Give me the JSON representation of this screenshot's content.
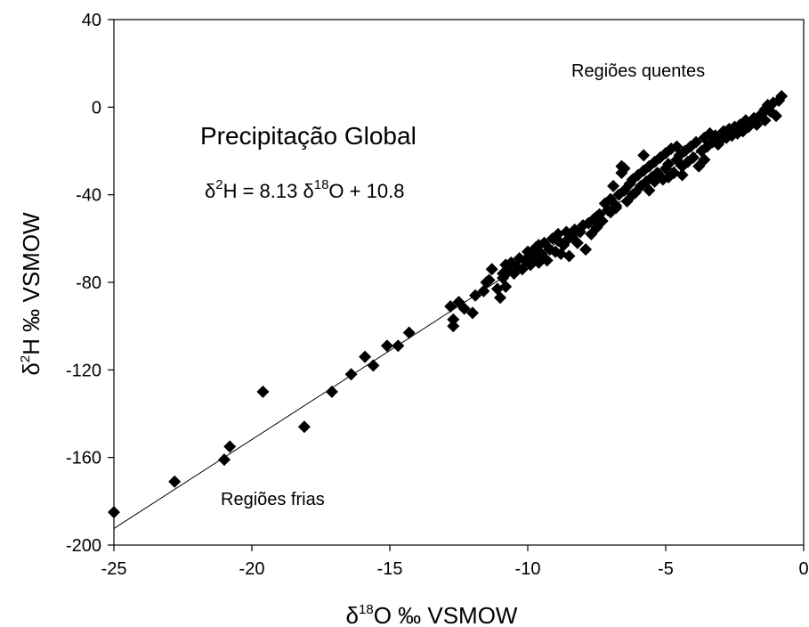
{
  "chart_data": {
    "type": "scatter",
    "title": "Precipitação Global",
    "equation": {
      "delta": "δ",
      "h_iso": "2",
      "h_rest": "H = 8.13 ",
      "o_iso": "18",
      "o_rest": "O + 10.8"
    },
    "xlabel": {
      "delta": "δ",
      "iso": "18",
      "rest": "O ‰ VSMOW"
    },
    "ylabel": {
      "delta": "δ",
      "iso": "2",
      "rest": "H ‰ VSMOW"
    },
    "xlim": [
      -25,
      0
    ],
    "ylim": [
      -200,
      40
    ],
    "xticks": [
      -25,
      -20,
      -15,
      -10,
      -5,
      0
    ],
    "yticks": [
      -200,
      -160,
      -120,
      -80,
      -40,
      0,
      40
    ],
    "annotations": {
      "warm": "Regiões quentes",
      "cold": "Regiões frias"
    },
    "fit_line": {
      "slope": 8.13,
      "intercept": 10.8,
      "x_range": [
        -25,
        -0.8
      ]
    },
    "marker": "diamond",
    "marker_color": "#000000",
    "series": [
      {
        "points": [
          [
            -25.0,
            -185
          ],
          [
            -22.8,
            -171
          ],
          [
            -21.0,
            -161
          ],
          [
            -20.8,
            -155
          ],
          [
            -19.6,
            -130
          ],
          [
            -18.1,
            -146
          ],
          [
            -17.1,
            -130
          ],
          [
            -16.4,
            -122
          ],
          [
            -15.9,
            -114
          ],
          [
            -15.6,
            -118
          ],
          [
            -15.1,
            -109
          ],
          [
            -14.7,
            -109
          ],
          [
            -14.3,
            -103
          ],
          [
            -12.8,
            -91
          ],
          [
            -12.7,
            -97
          ],
          [
            -12.7,
            -100
          ],
          [
            -12.5,
            -89
          ],
          [
            -12.3,
            -92
          ],
          [
            -12.0,
            -94
          ],
          [
            -11.9,
            -86
          ],
          [
            -11.6,
            -84
          ],
          [
            -11.4,
            -79
          ],
          [
            -11.3,
            -74
          ],
          [
            -11.1,
            -83
          ],
          [
            -11.0,
            -87
          ],
          [
            -10.9,
            -78
          ],
          [
            -10.8,
            -82
          ],
          [
            -10.7,
            -75
          ],
          [
            -10.6,
            -71
          ],
          [
            -10.5,
            -76
          ],
          [
            -10.4,
            -73
          ],
          [
            -10.3,
            -69
          ],
          [
            -10.2,
            -74
          ],
          [
            -10.1,
            -70
          ],
          [
            -10.0,
            -66
          ],
          [
            -9.9,
            -72
          ],
          [
            -9.8,
            -68
          ],
          [
            -9.7,
            -64
          ],
          [
            -9.6,
            -71
          ],
          [
            -9.5,
            -67
          ],
          [
            -9.4,
            -62
          ],
          [
            -9.3,
            -70
          ],
          [
            -9.2,
            -65
          ],
          [
            -9.1,
            -60
          ],
          [
            -9.0,
            -66
          ],
          [
            -8.9,
            -58
          ],
          [
            -8.8,
            -67
          ],
          [
            -8.7,
            -63
          ],
          [
            -8.6,
            -61
          ],
          [
            -8.5,
            -68
          ],
          [
            -8.4,
            -59
          ],
          [
            -8.3,
            -56
          ],
          [
            -8.2,
            -62
          ],
          [
            -8.1,
            -57
          ],
          [
            -8.0,
            -54
          ],
          [
            -7.9,
            -65
          ],
          [
            -7.8,
            -53
          ],
          [
            -7.7,
            -58
          ],
          [
            -7.6,
            -51
          ],
          [
            -7.5,
            -55
          ],
          [
            -7.4,
            -49
          ],
          [
            -7.3,
            -52
          ],
          [
            -7.2,
            -44
          ],
          [
            -7.1,
            -47
          ],
          [
            -7.0,
            -42
          ],
          [
            -6.9,
            -36
          ],
          [
            -6.8,
            -45
          ],
          [
            -6.7,
            -40
          ],
          [
            -6.6,
            -30
          ],
          [
            -6.5,
            -38
          ],
          [
            -6.5,
            -28
          ],
          [
            -6.4,
            -43
          ],
          [
            -6.3,
            -35
          ],
          [
            -6.2,
            -33
          ],
          [
            -6.1,
            -39
          ],
          [
            -6.0,
            -31
          ],
          [
            -5.9,
            -36
          ],
          [
            -5.8,
            -29
          ],
          [
            -5.7,
            -34
          ],
          [
            -5.6,
            -27
          ],
          [
            -5.5,
            -32
          ],
          [
            -5.4,
            -25
          ],
          [
            -5.3,
            -30
          ],
          [
            -5.2,
            -23
          ],
          [
            -5.1,
            -33
          ],
          [
            -5.0,
            -28
          ],
          [
            -5.0,
            -21
          ],
          [
            -4.9,
            -26
          ],
          [
            -4.8,
            -19
          ],
          [
            -4.7,
            -30
          ],
          [
            -4.6,
            -24
          ],
          [
            -4.5,
            -22
          ],
          [
            -4.4,
            -27
          ],
          [
            -4.3,
            -20
          ],
          [
            -4.2,
            -25
          ],
          [
            -4.1,
            -18
          ],
          [
            -4.0,
            -23
          ],
          [
            -3.9,
            -16
          ],
          [
            -3.8,
            -27
          ],
          [
            -3.7,
            -20
          ],
          [
            -3.6,
            -14
          ],
          [
            -3.5,
            -18
          ],
          [
            -3.4,
            -12
          ],
          [
            -3.3,
            -16
          ],
          [
            -3.2,
            -13
          ],
          [
            -3.0,
            -15
          ],
          [
            -2.9,
            -11
          ],
          [
            -2.8,
            -14
          ],
          [
            -2.7,
            -10
          ],
          [
            -2.6,
            -13
          ],
          [
            -2.5,
            -9
          ],
          [
            -2.4,
            -12
          ],
          [
            -2.3,
            -8
          ],
          [
            -2.2,
            -10
          ],
          [
            -2.1,
            -6
          ],
          [
            -2.0,
            -9
          ],
          [
            -1.9,
            -7
          ],
          [
            -1.8,
            -5
          ],
          [
            -1.7,
            -8
          ],
          [
            -1.6,
            -4
          ],
          [
            -1.5,
            -3
          ],
          [
            -1.4,
            -6
          ],
          [
            -1.3,
            1
          ],
          [
            -1.2,
            -2
          ],
          [
            -1.1,
            2
          ],
          [
            -1.0,
            -4
          ],
          [
            -0.9,
            3
          ],
          [
            -0.8,
            5
          ],
          [
            -6.6,
            -27
          ],
          [
            -5.8,
            -22
          ],
          [
            -4.6,
            -18
          ],
          [
            -8.6,
            -57
          ],
          [
            -7.0,
            -48
          ],
          [
            -6.2,
            -40
          ],
          [
            -5.4,
            -34
          ],
          [
            -9.6,
            -63
          ],
          [
            -10.8,
            -72
          ],
          [
            -11.5,
            -80
          ],
          [
            -4.4,
            -31
          ],
          [
            -3.6,
            -24
          ],
          [
            -2.2,
            -11
          ],
          [
            -1.4,
            -1
          ],
          [
            -5.6,
            -38
          ],
          [
            -6.8,
            -46
          ],
          [
            -7.5,
            -50
          ],
          [
            -8.9,
            -61
          ],
          [
            -9.9,
            -67
          ],
          [
            -10.9,
            -76
          ],
          [
            -4.9,
            -32
          ],
          [
            -3.1,
            -17
          ]
        ]
      }
    ]
  }
}
